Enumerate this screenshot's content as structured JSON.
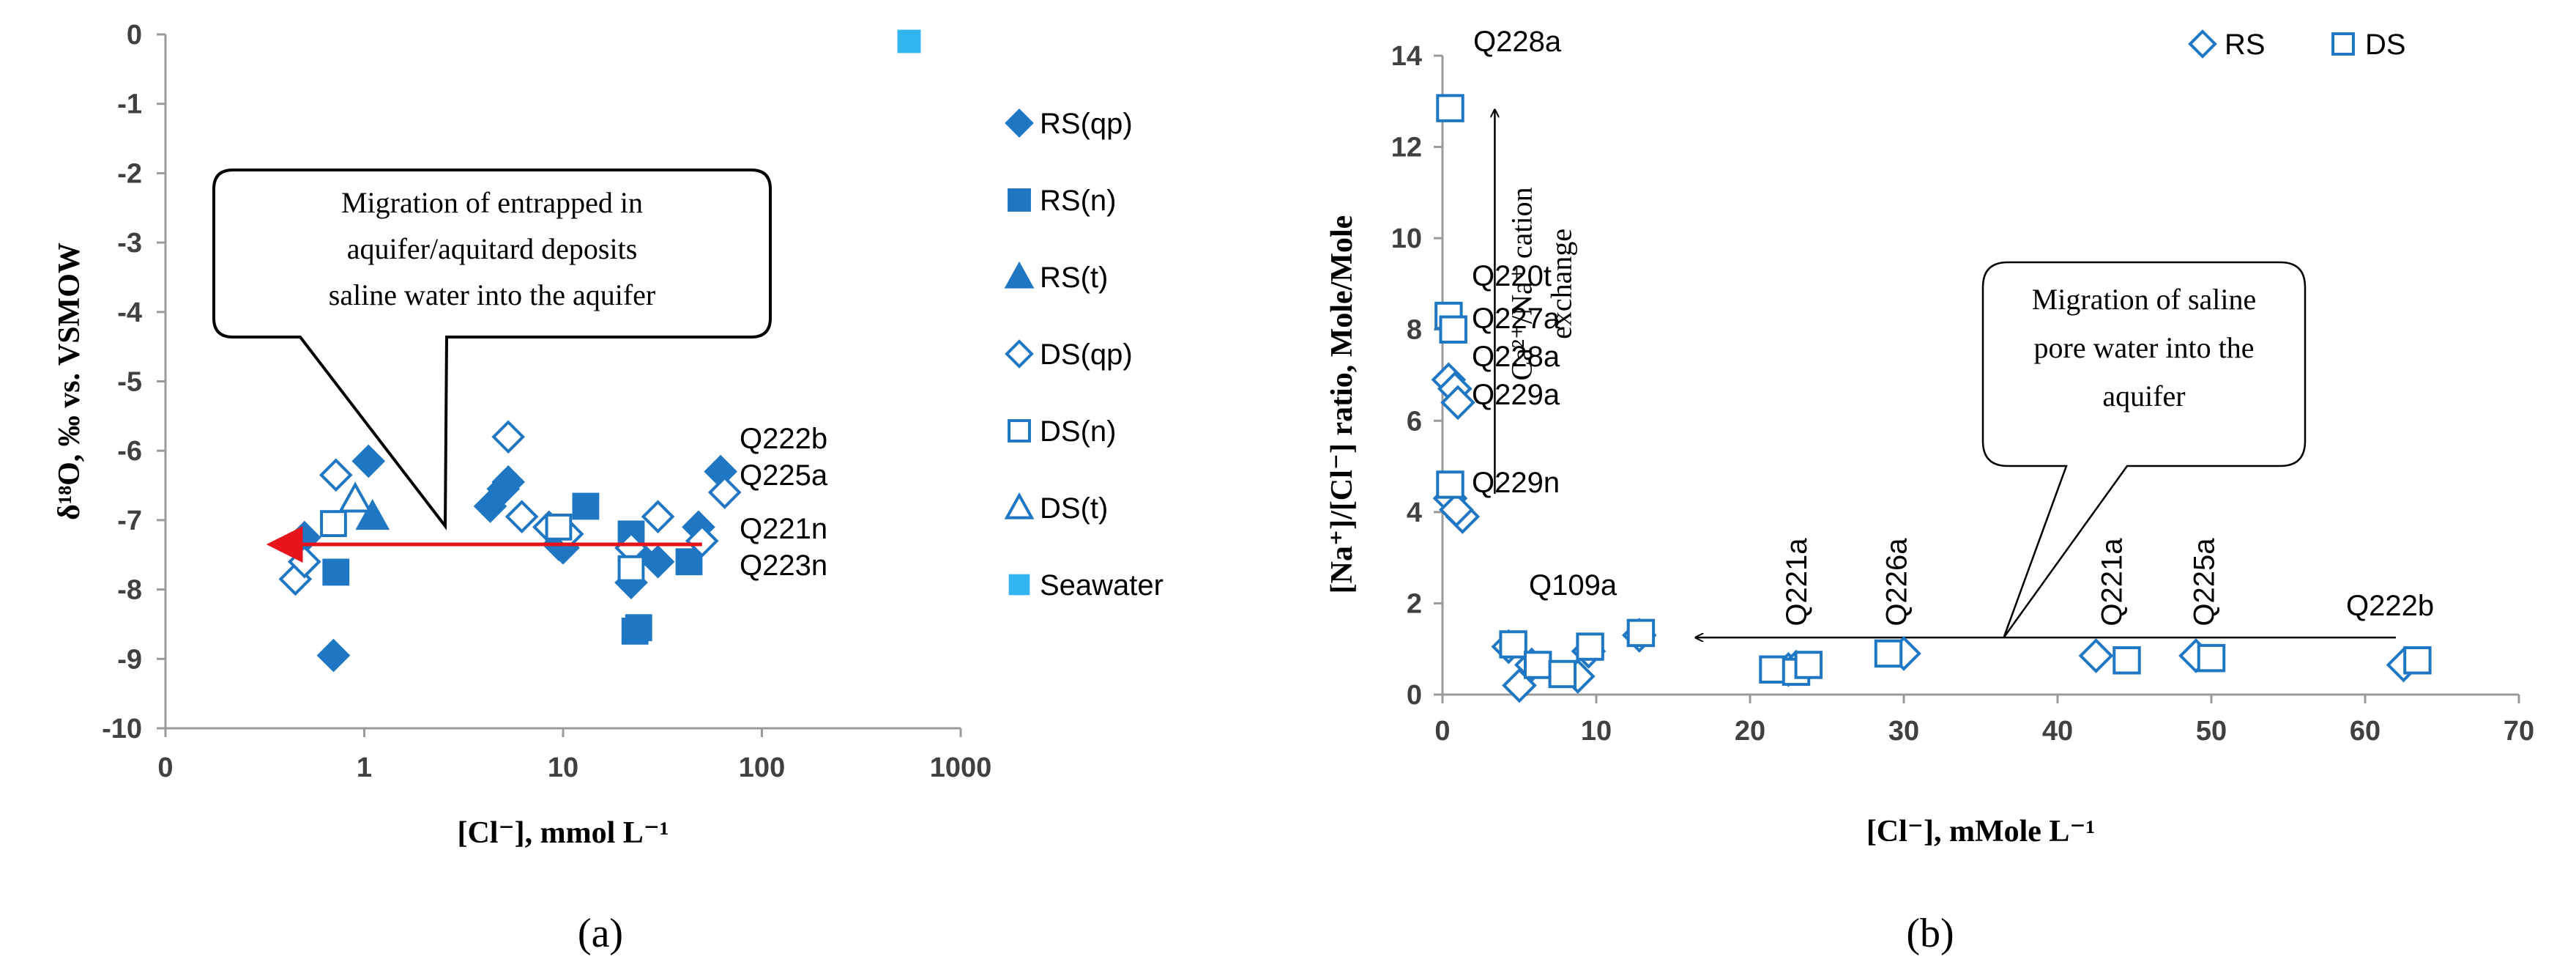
{
  "chart_data": [
    {
      "type": "scatter",
      "panel_label": "(a)",
      "xlabel": "[Cl⁻], mmol L⁻¹",
      "ylabel": "δ¹⁸O, ‰ vs. VSMOW",
      "xscale": "log",
      "xlim": [
        0.1,
        1000
      ],
      "ylim": [
        -10,
        0
      ],
      "x_tick_labels": [
        "0",
        "1",
        "10",
        "100",
        "1000"
      ],
      "y_ticks": [
        0,
        -1,
        -2,
        -3,
        -4,
        -5,
        -6,
        -7,
        -8,
        -9,
        -10
      ],
      "legend_position": "right",
      "series": [
        {
          "name": "RS(qp)",
          "marker": "diamond-filled",
          "color": "#1F77C4",
          "points": [
            [
              0.5,
              -7.25
            ],
            [
              0.7,
              -8.95
            ],
            [
              1.05,
              -6.15
            ],
            [
              4.3,
              -6.8
            ],
            [
              5.0,
              -6.55
            ],
            [
              5.3,
              -6.45
            ],
            [
              9.5,
              -7.35
            ],
            [
              10,
              -7.4
            ],
            [
              22,
              -7.9
            ],
            [
              24,
              -7.5
            ],
            [
              30,
              -7.6
            ],
            [
              48,
              -7.1
            ],
            [
              62,
              -6.3
            ]
          ]
        },
        {
          "name": "RS(n)",
          "marker": "square-filled",
          "color": "#1F77C4",
          "points": [
            [
              0.72,
              -7.75
            ],
            [
              13,
              -6.8
            ],
            [
              22,
              -7.2
            ],
            [
              23,
              -8.6
            ],
            [
              24,
              -8.55
            ],
            [
              43,
              -7.6
            ]
          ]
        },
        {
          "name": "RS(t)",
          "marker": "triangle-filled",
          "color": "#1F77C4",
          "points": [
            [
              1.1,
              -6.95
            ]
          ]
        },
        {
          "name": "DS(qp)",
          "marker": "diamond-open",
          "color": "#1F77C4",
          "points": [
            [
              0.45,
              -7.85
            ],
            [
              0.5,
              -7.6
            ],
            [
              0.72,
              -6.35
            ],
            [
              5.3,
              -5.8
            ],
            [
              6.2,
              -6.95
            ],
            [
              8.5,
              -7.1
            ],
            [
              10.5,
              -7.2
            ],
            [
              22,
              -7.4
            ],
            [
              30,
              -6.95
            ],
            [
              50,
              -7.3
            ],
            [
              65,
              -6.6
            ]
          ]
        },
        {
          "name": "DS(n)",
          "marker": "square-open",
          "color": "#1F77C4",
          "points": [
            [
              0.7,
              -7.05
            ],
            [
              9.5,
              -7.1
            ],
            [
              22,
              -7.7
            ]
          ]
        },
        {
          "name": "DS(t)",
          "marker": "triangle-open",
          "color": "#1F77C4",
          "points": [
            [
              0.9,
              -6.7
            ]
          ]
        },
        {
          "name": "Seawater",
          "marker": "square-filled",
          "color": "#33B5F0",
          "points": [
            [
              550,
              -0.1
            ]
          ]
        }
      ],
      "point_labels": [
        {
          "text": "Q222b",
          "x": 62,
          "y": -6.3
        },
        {
          "text": "Q225a",
          "x": 65,
          "y": -6.65
        },
        {
          "text": "Q221n",
          "x": 62,
          "y": -7.3
        },
        {
          "text": "Q223n",
          "x": 62,
          "y": -7.85
        }
      ],
      "annotation": {
        "lines": [
          "Migration of entrapped in",
          "aquifer/aquitard deposits",
          "saline water into the aquifer"
        ],
        "arrow_from": [
          50,
          -7.35
        ],
        "arrow_to": [
          0.35,
          -7.35
        ],
        "arrow_color": "#E8141C"
      }
    },
    {
      "type": "scatter",
      "panel_label": "(b)",
      "xlabel": "[Cl⁻], mMole L⁻¹",
      "ylabel": "[Na⁺]/[Cl⁻] ratio, Mole/Mole",
      "xlim": [
        0,
        70
      ],
      "ylim": [
        0,
        14
      ],
      "x_ticks": [
        0,
        10,
        20,
        30,
        40,
        50,
        60,
        70
      ],
      "y_ticks": [
        0,
        2,
        4,
        6,
        8,
        10,
        12,
        14
      ],
      "legend_position": "top-right",
      "series": [
        {
          "name": "RS",
          "marker": "diamond-open",
          "color": "#1F77C4",
          "points": [
            [
              0.4,
              6.9
            ],
            [
              0.8,
              6.7
            ],
            [
              1.0,
              6.4
            ],
            [
              0.5,
              4.3
            ],
            [
              1.3,
              3.9
            ],
            [
              0.9,
              4.05
            ],
            [
              4.3,
              1.05
            ],
            [
              5.0,
              0.2
            ],
            [
              5.8,
              0.65
            ],
            [
              8.8,
              0.4
            ],
            [
              9.5,
              0.95
            ],
            [
              12.8,
              1.3
            ],
            [
              22.5,
              0.55
            ],
            [
              23,
              0.6
            ],
            [
              30,
              0.9
            ],
            [
              42.5,
              0.85
            ],
            [
              49,
              0.85
            ],
            [
              62.5,
              0.65
            ]
          ]
        },
        {
          "name": "DS",
          "marker": "square-open",
          "color": "#1F77C4",
          "points": [
            [
              0.5,
              12.85
            ],
            [
              0.4,
              8.3
            ],
            [
              0.7,
              8.0
            ],
            [
              0.5,
              4.6
            ],
            [
              4.6,
              1.1
            ],
            [
              6.2,
              0.65
            ],
            [
              7.8,
              0.45
            ],
            [
              9.6,
              1.05
            ],
            [
              12.9,
              1.35
            ],
            [
              21.5,
              0.55
            ],
            [
              23,
              0.5
            ],
            [
              23.8,
              0.65
            ],
            [
              29,
              0.9
            ],
            [
              44.5,
              0.75
            ],
            [
              50,
              0.8
            ],
            [
              63.4,
              0.75
            ]
          ]
        }
      ],
      "point_labels": [
        {
          "text": "Q228a",
          "x": 0.5,
          "y": 12.85,
          "rotated": false
        },
        {
          "text": "Q220t",
          "x": 0.4,
          "y": 8.3,
          "rotated": false
        },
        {
          "text": "Q227a",
          "x": 0.7,
          "y": 8.0,
          "rotated": false
        },
        {
          "text": "Q228a",
          "x": 0.4,
          "y": 6.9,
          "rotated": false
        },
        {
          "text": "Q229a",
          "x": 0.8,
          "y": 6.5,
          "rotated": false
        },
        {
          "text": "Q229n",
          "x": 0.5,
          "y": 4.6,
          "rotated": false
        },
        {
          "text": "Q109a",
          "x": 12.5,
          "y": 1.35,
          "rotated": false
        },
        {
          "text": "Q221a",
          "x": 23,
          "y": 0.65,
          "rotated": true
        },
        {
          "text": "Q226a",
          "x": 29.5,
          "y": 0.9,
          "rotated": true
        },
        {
          "text": "Q221a",
          "x": 43.5,
          "y": 0.85,
          "rotated": true
        },
        {
          "text": "Q225a",
          "x": 49.5,
          "y": 0.85,
          "rotated": true
        },
        {
          "text": "Q222b",
          "x": 63,
          "y": 0.75,
          "rotated": false
        }
      ],
      "annotation_box": {
        "lines": [
          "Migration of saline",
          "pore water into the",
          "aquifer"
        ],
        "arrow_from": [
          62,
          1.25
        ],
        "arrow_to": [
          16.5,
          1.25
        ]
      },
      "annotation_vertical": {
        "lines": [
          "Ca²⁺/Na⁺ cation",
          "exchange"
        ],
        "arrow_from": [
          3.4,
          4.4
        ],
        "arrow_to": [
          3.4,
          12.8
        ]
      }
    }
  ]
}
